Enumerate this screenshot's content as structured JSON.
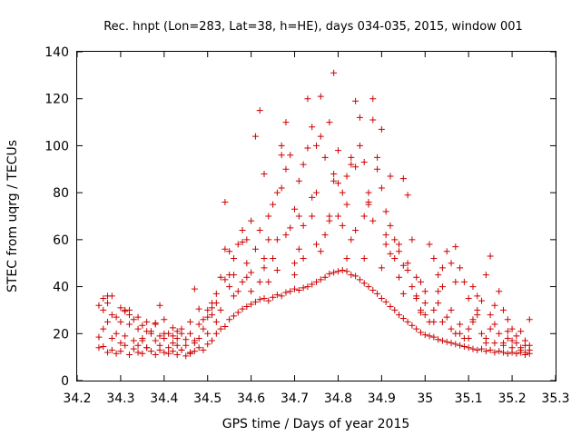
{
  "chart_data": {
    "type": "scatter",
    "title": "Rec. hnpt (Lon=283, Lat=38, h=HE), days 034-035, 2015, window 001",
    "xlabel": "GPS time / Days of year 2015",
    "ylabel": "STEC from uqrg / TECUs",
    "xlim": [
      34.2,
      35.3
    ],
    "ylim": [
      0,
      140
    ],
    "xticks": [
      "34.2",
      "34.3",
      "34.4",
      "34.5",
      "34.6",
      "34.7",
      "34.8",
      "34.9",
      "35",
      "35.1",
      "35.2",
      "35.3"
    ],
    "yticks": [
      "0",
      "20",
      "40",
      "60",
      "80",
      "100",
      "120",
      "140"
    ],
    "marker": "+",
    "color": "#cc0000",
    "grid": false,
    "points": [
      [
        34.25,
        18.5
      ],
      [
        34.26,
        14.5
      ],
      [
        34.27,
        12.0
      ],
      [
        34.28,
        13.0
      ],
      [
        34.29,
        11.5
      ],
      [
        34.3,
        12.5
      ],
      [
        34.31,
        15.0
      ],
      [
        34.32,
        11.0
      ],
      [
        34.33,
        13.5
      ],
      [
        34.34,
        12.0
      ],
      [
        34.35,
        11.5
      ],
      [
        34.36,
        14.0
      ],
      [
        34.37,
        12.5
      ],
      [
        34.38,
        11.0
      ],
      [
        34.39,
        13.0
      ],
      [
        34.4,
        12.0
      ],
      [
        34.41,
        11.5
      ],
      [
        34.42,
        12.5
      ],
      [
        34.43,
        11.0
      ],
      [
        34.44,
        13.0
      ],
      [
        34.45,
        10.5
      ],
      [
        34.46,
        11.5
      ],
      [
        34.47,
        12.5
      ],
      [
        34.48,
        14.0
      ],
      [
        34.49,
        13.0
      ],
      [
        34.5,
        15.5
      ],
      [
        34.51,
        17.0
      ],
      [
        34.52,
        20.0
      ],
      [
        34.53,
        22.0
      ],
      [
        34.54,
        23.0
      ],
      [
        34.55,
        26.0
      ],
      [
        34.56,
        27.5
      ],
      [
        34.57,
        29.0
      ],
      [
        34.58,
        30.5
      ],
      [
        34.59,
        31.5
      ],
      [
        34.6,
        32.5
      ],
      [
        34.61,
        33.5
      ],
      [
        34.62,
        34.5
      ],
      [
        34.63,
        35.0
      ],
      [
        34.64,
        34.0
      ],
      [
        34.65,
        35.5
      ],
      [
        34.66,
        36.5
      ],
      [
        34.67,
        36.0
      ],
      [
        34.68,
        37.5
      ],
      [
        34.69,
        38.0
      ],
      [
        34.7,
        39.0
      ],
      [
        34.71,
        38.5
      ],
      [
        34.72,
        39.5
      ],
      [
        34.73,
        40.0
      ],
      [
        34.74,
        41.0
      ],
      [
        34.75,
        42.0
      ],
      [
        34.76,
        43.0
      ],
      [
        34.77,
        44.0
      ],
      [
        34.78,
        45.5
      ],
      [
        34.79,
        46.0
      ],
      [
        34.8,
        46.5
      ],
      [
        34.81,
        47.0
      ],
      [
        34.82,
        46.5
      ],
      [
        34.83,
        45.0
      ],
      [
        34.84,
        44.5
      ],
      [
        34.85,
        43.0
      ],
      [
        34.86,
        41.5
      ],
      [
        34.87,
        40.0
      ],
      [
        34.88,
        38.5
      ],
      [
        34.89,
        37.0
      ],
      [
        34.9,
        35.0
      ],
      [
        34.91,
        33.5
      ],
      [
        34.92,
        31.5
      ],
      [
        34.93,
        30.0
      ],
      [
        34.94,
        28.0
      ],
      [
        34.95,
        26.5
      ],
      [
        34.96,
        25.0
      ],
      [
        34.97,
        23.5
      ],
      [
        34.98,
        22.0
      ],
      [
        34.99,
        20.5
      ],
      [
        35.0,
        19.5
      ],
      [
        35.01,
        19.0
      ],
      [
        35.02,
        18.5
      ],
      [
        35.03,
        17.5
      ],
      [
        35.04,
        17.0
      ],
      [
        35.05,
        16.5
      ],
      [
        35.06,
        16.0
      ],
      [
        35.07,
        15.5
      ],
      [
        35.08,
        15.0
      ],
      [
        35.09,
        14.5
      ],
      [
        35.1,
        14.0
      ],
      [
        35.11,
        13.5
      ],
      [
        35.12,
        13.0
      ],
      [
        35.13,
        13.5
      ],
      [
        35.14,
        12.5
      ],
      [
        35.15,
        13.0
      ],
      [
        35.16,
        12.0
      ],
      [
        35.17,
        12.5
      ],
      [
        35.18,
        12.0
      ],
      [
        35.19,
        11.5
      ],
      [
        35.2,
        12.0
      ],
      [
        35.21,
        11.5
      ],
      [
        35.22,
        12.0
      ],
      [
        35.23,
        11.0
      ],
      [
        35.24,
        11.5
      ],
      [
        34.25,
        32.0
      ],
      [
        34.26,
        30.0
      ],
      [
        34.27,
        33.0
      ],
      [
        34.28,
        36.0
      ],
      [
        34.29,
        27.0
      ],
      [
        34.3,
        25.0
      ],
      [
        34.31,
        29.5
      ],
      [
        34.32,
        28.0
      ],
      [
        34.33,
        26.0
      ],
      [
        34.34,
        22.0
      ],
      [
        34.35,
        23.5
      ],
      [
        34.36,
        25.0
      ],
      [
        34.37,
        21.0
      ],
      [
        34.38,
        24.0
      ],
      [
        34.39,
        32.0
      ],
      [
        34.4,
        26.0
      ],
      [
        34.41,
        20.0
      ],
      [
        34.42,
        22.5
      ],
      [
        34.43,
        18.0
      ],
      [
        34.44,
        20.0
      ],
      [
        34.45,
        17.5
      ],
      [
        34.46,
        25.0
      ],
      [
        34.47,
        39.0
      ],
      [
        34.48,
        30.5
      ],
      [
        34.49,
        26.0
      ],
      [
        34.5,
        30.0
      ],
      [
        34.51,
        33.0
      ],
      [
        34.52,
        37.0
      ],
      [
        34.53,
        44.0
      ],
      [
        34.54,
        43.0
      ],
      [
        34.55,
        55.0
      ],
      [
        34.56,
        52.0
      ],
      [
        34.57,
        58.0
      ],
      [
        34.58,
        59.0
      ],
      [
        34.59,
        50.0
      ],
      [
        34.6,
        68.0
      ],
      [
        34.61,
        56.0
      ],
      [
        34.62,
        64.0
      ],
      [
        34.63,
        88.0
      ],
      [
        34.64,
        70.0
      ],
      [
        34.65,
        75.0
      ],
      [
        34.66,
        80.0
      ],
      [
        34.67,
        82.0
      ],
      [
        34.68,
        90.0
      ],
      [
        34.69,
        96.0
      ],
      [
        34.7,
        73.0
      ],
      [
        34.71,
        85.0
      ],
      [
        34.72,
        92.0
      ],
      [
        34.73,
        99.0
      ],
      [
        34.74,
        108.0
      ],
      [
        34.75,
        100.0
      ],
      [
        34.76,
        104.0
      ],
      [
        34.77,
        95.0
      ],
      [
        34.78,
        110.0
      ],
      [
        34.79,
        88.0
      ],
      [
        34.8,
        98.0
      ],
      [
        34.81,
        80.0
      ],
      [
        34.82,
        87.0
      ],
      [
        34.83,
        95.0
      ],
      [
        34.84,
        91.0
      ],
      [
        34.85,
        100.0
      ],
      [
        34.86,
        93.0
      ],
      [
        34.87,
        76.0
      ],
      [
        34.88,
        120.0
      ],
      [
        34.89,
        95.0
      ],
      [
        34.9,
        107.0
      ],
      [
        34.91,
        72.0
      ],
      [
        34.92,
        66.0
      ],
      [
        34.93,
        60.0
      ],
      [
        34.94,
        55.0
      ],
      [
        34.95,
        49.0
      ],
      [
        34.96,
        47.0
      ],
      [
        34.97,
        60.0
      ],
      [
        34.98,
        44.0
      ],
      [
        34.99,
        42.0
      ],
      [
        35.0,
        38.0
      ],
      [
        35.01,
        58.0
      ],
      [
        35.02,
        52.0
      ],
      [
        35.03,
        45.0
      ],
      [
        35.04,
        40.0
      ],
      [
        35.05,
        55.0
      ],
      [
        35.06,
        50.0
      ],
      [
        35.07,
        57.0
      ],
      [
        35.08,
        48.0
      ],
      [
        35.09,
        42.0
      ],
      [
        35.1,
        35.0
      ],
      [
        35.11,
        40.0
      ],
      [
        35.12,
        36.0
      ],
      [
        35.13,
        34.0
      ],
      [
        35.14,
        45.0
      ],
      [
        35.15,
        53.0
      ],
      [
        35.16,
        32.0
      ],
      [
        35.17,
        38.0
      ],
      [
        35.18,
        30.0
      ],
      [
        35.19,
        26.0
      ],
      [
        35.2,
        22.0
      ],
      [
        35.21,
        19.0
      ],
      [
        35.22,
        21.0
      ],
      [
        35.23,
        17.0
      ],
      [
        35.24,
        26.0
      ],
      [
        34.25,
        14.0
      ],
      [
        34.26,
        22.0
      ],
      [
        34.27,
        25.0
      ],
      [
        34.28,
        18.0
      ],
      [
        34.29,
        20.0
      ],
      [
        34.3,
        16.0
      ],
      [
        34.31,
        19.0
      ],
      [
        34.32,
        30.0
      ],
      [
        34.33,
        17.0
      ],
      [
        34.34,
        15.0
      ],
      [
        34.35,
        18.0
      ],
      [
        34.36,
        14.0
      ],
      [
        34.37,
        20.0
      ],
      [
        34.38,
        17.0
      ],
      [
        34.39,
        15.0
      ],
      [
        34.4,
        18.0
      ],
      [
        34.41,
        14.0
      ],
      [
        34.42,
        16.0
      ],
      [
        34.43,
        15.0
      ],
      [
        34.44,
        13.0
      ],
      [
        34.45,
        15.0
      ],
      [
        34.46,
        12.0
      ],
      [
        34.47,
        16.0
      ],
      [
        34.48,
        18.0
      ],
      [
        34.49,
        22.0
      ],
      [
        34.5,
        20.0
      ],
      [
        34.51,
        28.0
      ],
      [
        34.52,
        25.0
      ],
      [
        34.53,
        30.0
      ],
      [
        34.54,
        76.0
      ],
      [
        34.55,
        40.0
      ],
      [
        34.56,
        45.0
      ],
      [
        34.57,
        38.0
      ],
      [
        34.58,
        42.0
      ],
      [
        34.59,
        44.0
      ],
      [
        34.6,
        46.0
      ],
      [
        34.61,
        104.0
      ],
      [
        34.62,
        115.0
      ],
      [
        34.63,
        48.0
      ],
      [
        34.64,
        42.0
      ],
      [
        34.65,
        52.0
      ],
      [
        34.66,
        60.0
      ],
      [
        34.67,
        100.0
      ],
      [
        34.68,
        110.0
      ],
      [
        34.69,
        65.0
      ],
      [
        34.7,
        50.0
      ],
      [
        34.71,
        56.0
      ],
      [
        34.72,
        66.0
      ],
      [
        34.73,
        120.0
      ],
      [
        34.74,
        70.0
      ],
      [
        34.75,
        58.0
      ],
      [
        34.76,
        121.0
      ],
      [
        34.77,
        62.0
      ],
      [
        34.78,
        70.0
      ],
      [
        34.79,
        131.0
      ],
      [
        34.8,
        84.0
      ],
      [
        34.81,
        66.0
      ],
      [
        34.82,
        75.0
      ],
      [
        34.83,
        60.0
      ],
      [
        34.84,
        119.0
      ],
      [
        34.85,
        112.0
      ],
      [
        34.86,
        70.0
      ],
      [
        34.87,
        80.0
      ],
      [
        34.88,
        111.0
      ],
      [
        34.89,
        90.0
      ],
      [
        34.9,
        82.0
      ],
      [
        34.91,
        58.0
      ],
      [
        34.92,
        87.0
      ],
      [
        34.93,
        52.0
      ],
      [
        34.94,
        58.0
      ],
      [
        34.95,
        86.0
      ],
      [
        34.96,
        79.0
      ],
      [
        34.97,
        40.0
      ],
      [
        34.98,
        35.0
      ],
      [
        34.99,
        30.0
      ],
      [
        35.0,
        28.0
      ],
      [
        35.01,
        25.0
      ],
      [
        35.02,
        30.0
      ],
      [
        35.03,
        33.0
      ],
      [
        35.04,
        25.0
      ],
      [
        35.05,
        27.0
      ],
      [
        35.06,
        22.0
      ],
      [
        35.07,
        20.0
      ],
      [
        35.08,
        24.0
      ],
      [
        35.09,
        18.0
      ],
      [
        35.1,
        22.0
      ],
      [
        35.11,
        25.0
      ],
      [
        35.12,
        28.0
      ],
      [
        35.13,
        20.0
      ],
      [
        35.14,
        18.0
      ],
      [
        35.15,
        22.0
      ],
      [
        35.16,
        16.0
      ],
      [
        35.17,
        20.0
      ],
      [
        35.18,
        15.0
      ],
      [
        35.19,
        18.0
      ],
      [
        35.2,
        14.0
      ],
      [
        35.21,
        16.0
      ],
      [
        35.22,
        13.0
      ],
      [
        35.23,
        15.0
      ],
      [
        35.24,
        13.0
      ],
      [
        34.26,
        35.0
      ],
      [
        34.28,
        28.0
      ],
      [
        34.3,
        31.0
      ],
      [
        34.32,
        24.0
      ],
      [
        34.34,
        27.0
      ],
      [
        34.36,
        21.0
      ],
      [
        34.38,
        24.5
      ],
      [
        34.4,
        20.0
      ],
      [
        34.42,
        19.0
      ],
      [
        34.44,
        22.0
      ],
      [
        34.46,
        20.0
      ],
      [
        34.48,
        24.0
      ],
      [
        34.5,
        27.0
      ],
      [
        34.52,
        33.0
      ],
      [
        34.54,
        56.0
      ],
      [
        34.56,
        36.0
      ],
      [
        34.58,
        64.0
      ],
      [
        34.6,
        38.0
      ],
      [
        34.62,
        42.0
      ],
      [
        34.64,
        60.0
      ],
      [
        34.66,
        47.0
      ],
      [
        34.68,
        62.0
      ],
      [
        34.7,
        45.0
      ],
      [
        34.72,
        52.0
      ],
      [
        34.74,
        78.0
      ],
      [
        34.76,
        55.0
      ],
      [
        34.78,
        68.0
      ],
      [
        34.8,
        70.0
      ],
      [
        34.82,
        52.0
      ],
      [
        34.84,
        64.0
      ],
      [
        34.86,
        52.0
      ],
      [
        34.88,
        68.0
      ],
      [
        34.9,
        48.0
      ],
      [
        34.92,
        54.0
      ],
      [
        34.94,
        44.0
      ],
      [
        34.96,
        50.0
      ],
      [
        34.98,
        36.0
      ],
      [
        35.0,
        33.0
      ],
      [
        35.02,
        25.0
      ],
      [
        35.04,
        48.0
      ],
      [
        35.06,
        30.0
      ],
      [
        35.08,
        20.0
      ],
      [
        35.1,
        18.0
      ],
      [
        35.12,
        30.0
      ],
      [
        35.14,
        16.0
      ],
      [
        35.16,
        24.0
      ],
      [
        35.18,
        16.0
      ],
      [
        35.2,
        17.0
      ],
      [
        35.22,
        14.0
      ],
      [
        35.24,
        15.0
      ],
      [
        34.27,
        36.0
      ],
      [
        34.31,
        30.0
      ],
      [
        34.35,
        17.0
      ],
      [
        34.39,
        19.0
      ],
      [
        34.43,
        21.0
      ],
      [
        34.47,
        17.0
      ],
      [
        34.51,
        31.0
      ],
      [
        34.55,
        45.0
      ],
      [
        34.59,
        60.0
      ],
      [
        34.63,
        52.0
      ],
      [
        34.67,
        96.0
      ],
      [
        34.71,
        70.0
      ],
      [
        34.75,
        80.0
      ],
      [
        34.79,
        85.0
      ],
      [
        34.83,
        92.0
      ],
      [
        34.87,
        75.0
      ],
      [
        34.91,
        62.0
      ],
      [
        34.95,
        37.0
      ],
      [
        34.99,
        29.0
      ],
      [
        35.03,
        38.0
      ],
      [
        35.07,
        42.0
      ],
      [
        35.11,
        26.0
      ],
      [
        35.15,
        28.0
      ],
      [
        35.19,
        21.0
      ],
      [
        35.23,
        12.0
      ]
    ]
  }
}
